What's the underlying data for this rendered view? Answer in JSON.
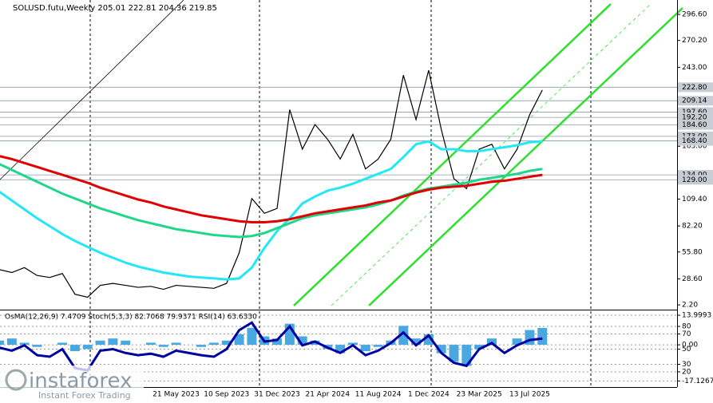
{
  "chart_data": [
    {
      "type": "line",
      "title": "SOLUSD.futu,Weekly  205.01 222.81 204.36 219.85",
      "categories": [
        null,
        null,
        null,
        null,
        null,
        null,
        null,
        null,
        null,
        null,
        null,
        null,
        null,
        null,
        "21 May 2023",
        null,
        null,
        null,
        "10 Sep 2023",
        null,
        null,
        null,
        "31 Dec 2023",
        null,
        null,
        null,
        "21 Apr 2024",
        null,
        null,
        null,
        "11 Aug 2024",
        null,
        null,
        null,
        "1 Dec 2024",
        null,
        null,
        null,
        "23 Mar 2025",
        null,
        null,
        null,
        "13 Jul 2025",
        null
      ],
      "series": [
        {
          "color": "#000000",
          "values": [
            38,
            35,
            40,
            32,
            30,
            34,
            13,
            10,
            22,
            24,
            22,
            20,
            21,
            18,
            22,
            21,
            20,
            19,
            24,
            55,
            110,
            95,
            100,
            200,
            160,
            185,
            170,
            150,
            175,
            140,
            150,
            170,
            235,
            190,
            240,
            180,
            130,
            120,
            160,
            165,
            140,
            160,
            195,
            220
          ]
        },
        {
          "color": "#22e8f5",
          "values": [
            117,
            108,
            99,
            90,
            82,
            74,
            67,
            61,
            55,
            50,
            45,
            41,
            38,
            35,
            33,
            31,
            30,
            29,
            28,
            29,
            40,
            60,
            77,
            90,
            105,
            112,
            118,
            121,
            125,
            130,
            135,
            140,
            152,
            165,
            168,
            160,
            160,
            158,
            158,
            160,
            162,
            164,
            167,
            168
          ]
        },
        {
          "color": "#1fd68a",
          "values": [
            145,
            139,
            133,
            127,
            121,
            115,
            110,
            105,
            100,
            96,
            92,
            88,
            85,
            82,
            79,
            77,
            75,
            73,
            72,
            71,
            72,
            75,
            80,
            85,
            90,
            93,
            95,
            97,
            99,
            101,
            104,
            108,
            113,
            117,
            120,
            122,
            124,
            126,
            129,
            131,
            133,
            135,
            138,
            140
          ]
        },
        {
          "color": "#e00000",
          "values": [
            153,
            150,
            146,
            142,
            138,
            134,
            130,
            126,
            121,
            117,
            113,
            109,
            106,
            102,
            99,
            96,
            93,
            91,
            89,
            87,
            86,
            86,
            87,
            89,
            92,
            95,
            97,
            99,
            101,
            103,
            106,
            108,
            112,
            116,
            119,
            121,
            122,
            123,
            125,
            127,
            128,
            130,
            132,
            134
          ]
        }
      ],
      "ylim": [
        -2.6,
        311.2
      ],
      "yticks": [
        {
          "value": 2.2,
          "label": "2.20"
        },
        {
          "value": 28.6,
          "label": "28.60"
        },
        {
          "value": 55.8,
          "label": "55.80"
        },
        {
          "value": 82.2,
          "label": "82.20"
        },
        {
          "value": 109.4,
          "label": "109.40"
        },
        {
          "value": 163,
          "label": "163.00"
        },
        {
          "value": 243,
          "label": "243.00"
        },
        {
          "value": 270.2,
          "label": "270.20"
        },
        {
          "value": 296.6,
          "label": "296.60"
        }
      ],
      "levels": [
        {
          "value": 222.8,
          "label": "222.80"
        },
        {
          "value": 209.14,
          "label": "209.14"
        },
        {
          "value": 197.6,
          "label": "197.60"
        },
        {
          "value": 192.2,
          "label": "192.20"
        },
        {
          "value": 184.6,
          "label": "184.60"
        },
        {
          "value": 173,
          "label": "173.00"
        },
        {
          "value": 168.4,
          "label": "168.40"
        },
        {
          "value": 134,
          "label": "134.00"
        },
        {
          "value": 129,
          "label": "129.00"
        }
      ]
    },
    {
      "type": "line",
      "title": "OsMA(12,26,9) 7.4709  Stoch(5,3,3) 82.7068 79.9371  RSI(14) 63.6330",
      "series": [
        {
          "color": "#4aa8e0",
          "type": "bar",
          "axis": "y2",
          "values": [
            2,
            3,
            1,
            -1,
            0,
            1,
            -3,
            -2,
            2,
            3,
            2,
            0,
            1,
            -1,
            1,
            0,
            -1,
            1,
            2,
            5,
            8,
            4,
            3,
            10,
            4,
            2,
            -2,
            -4,
            1,
            -3,
            -1,
            2,
            9,
            3,
            5,
            -4,
            -8,
            -10,
            -2,
            3,
            0,
            3,
            7,
            8
          ]
        },
        {
          "color": "#0000a0",
          "values": [
            52,
            48,
            55,
            42,
            40,
            50,
            25,
            22,
            48,
            50,
            45,
            42,
            44,
            40,
            48,
            45,
            42,
            40,
            50,
            75,
            85,
            60,
            62,
            80,
            55,
            60,
            52,
            45,
            55,
            42,
            48,
            58,
            72,
            55,
            68,
            45,
            32,
            28,
            50,
            58,
            45,
            55,
            62,
            64
          ]
        }
      ],
      "ylim": [
        0,
        100
      ],
      "yticks": [
        80,
        70,
        50,
        30,
        20
      ],
      "y2lim": [
        -20,
        15.9
      ],
      "y2ticks": [
        13.9993,
        {
          "value": 0,
          "label": "0.00"
        },
        -17.1267
      ]
    }
  ],
  "logo": {
    "name": "instaforex",
    "tagline": "Instant Forex Trading"
  }
}
